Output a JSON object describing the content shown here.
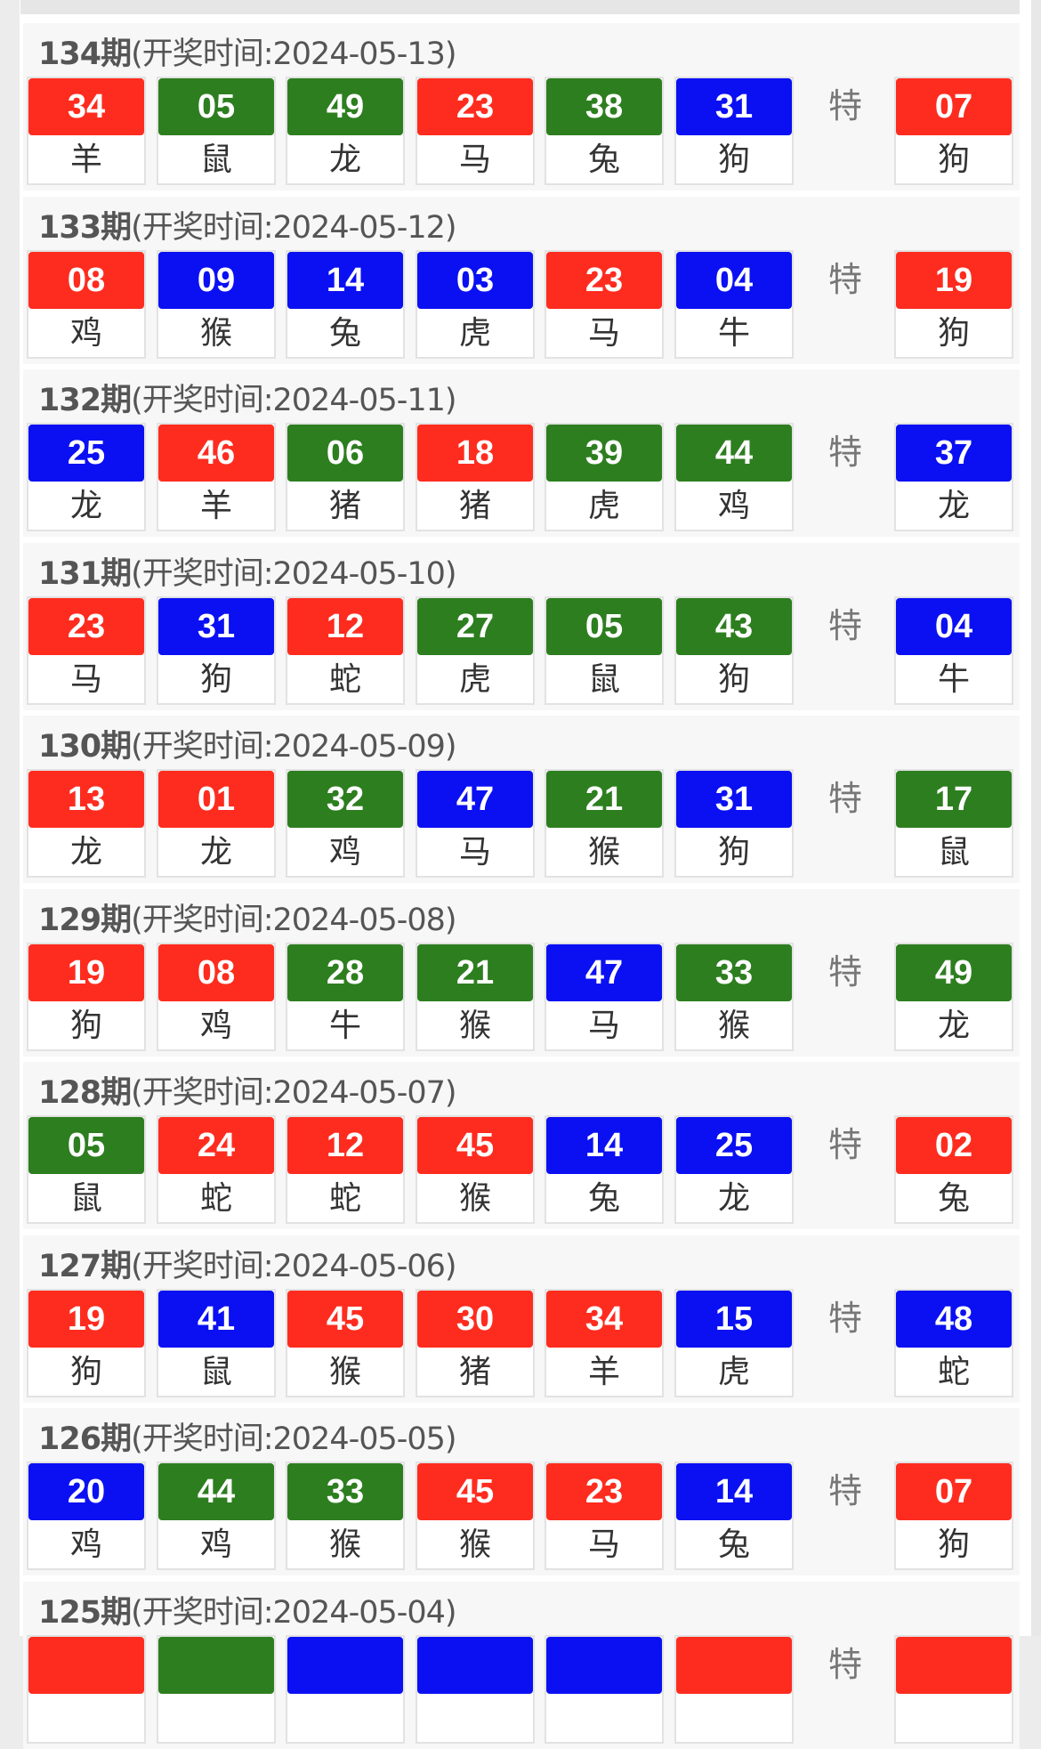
{
  "colors": {
    "red": "#fe2c1f",
    "green": "#2d7e1f",
    "blue": "#0a10f2"
  },
  "special_label": "特",
  "period_suffix": "期",
  "records": [
    {
      "period": "134",
      "date_text": "(开奖时间:2024-05-13)",
      "balls": [
        {
          "n": "34",
          "z": "羊",
          "c": "red"
        },
        {
          "n": "05",
          "z": "鼠",
          "c": "green"
        },
        {
          "n": "49",
          "z": "龙",
          "c": "green"
        },
        {
          "n": "23",
          "z": "马",
          "c": "red"
        },
        {
          "n": "38",
          "z": "兔",
          "c": "green"
        },
        {
          "n": "31",
          "z": "狗",
          "c": "blue"
        }
      ],
      "special": {
        "n": "07",
        "z": "狗",
        "c": "red"
      }
    },
    {
      "period": "133",
      "date_text": "(开奖时间:2024-05-12)",
      "balls": [
        {
          "n": "08",
          "z": "鸡",
          "c": "red"
        },
        {
          "n": "09",
          "z": "猴",
          "c": "blue"
        },
        {
          "n": "14",
          "z": "兔",
          "c": "blue"
        },
        {
          "n": "03",
          "z": "虎",
          "c": "blue"
        },
        {
          "n": "23",
          "z": "马",
          "c": "red"
        },
        {
          "n": "04",
          "z": "牛",
          "c": "blue"
        }
      ],
      "special": {
        "n": "19",
        "z": "狗",
        "c": "red"
      }
    },
    {
      "period": "132",
      "date_text": "(开奖时间:2024-05-11)",
      "balls": [
        {
          "n": "25",
          "z": "龙",
          "c": "blue"
        },
        {
          "n": "46",
          "z": "羊",
          "c": "red"
        },
        {
          "n": "06",
          "z": "猪",
          "c": "green"
        },
        {
          "n": "18",
          "z": "猪",
          "c": "red"
        },
        {
          "n": "39",
          "z": "虎",
          "c": "green"
        },
        {
          "n": "44",
          "z": "鸡",
          "c": "green"
        }
      ],
      "special": {
        "n": "37",
        "z": "龙",
        "c": "blue"
      }
    },
    {
      "period": "131",
      "date_text": "(开奖时间:2024-05-10)",
      "balls": [
        {
          "n": "23",
          "z": "马",
          "c": "red"
        },
        {
          "n": "31",
          "z": "狗",
          "c": "blue"
        },
        {
          "n": "12",
          "z": "蛇",
          "c": "red"
        },
        {
          "n": "27",
          "z": "虎",
          "c": "green"
        },
        {
          "n": "05",
          "z": "鼠",
          "c": "green"
        },
        {
          "n": "43",
          "z": "狗",
          "c": "green"
        }
      ],
      "special": {
        "n": "04",
        "z": "牛",
        "c": "blue"
      }
    },
    {
      "period": "130",
      "date_text": "(开奖时间:2024-05-09)",
      "balls": [
        {
          "n": "13",
          "z": "龙",
          "c": "red"
        },
        {
          "n": "01",
          "z": "龙",
          "c": "red"
        },
        {
          "n": "32",
          "z": "鸡",
          "c": "green"
        },
        {
          "n": "47",
          "z": "马",
          "c": "blue"
        },
        {
          "n": "21",
          "z": "猴",
          "c": "green"
        },
        {
          "n": "31",
          "z": "狗",
          "c": "blue"
        }
      ],
      "special": {
        "n": "17",
        "z": "鼠",
        "c": "green"
      }
    },
    {
      "period": "129",
      "date_text": "(开奖时间:2024-05-08)",
      "balls": [
        {
          "n": "19",
          "z": "狗",
          "c": "red"
        },
        {
          "n": "08",
          "z": "鸡",
          "c": "red"
        },
        {
          "n": "28",
          "z": "牛",
          "c": "green"
        },
        {
          "n": "21",
          "z": "猴",
          "c": "green"
        },
        {
          "n": "47",
          "z": "马",
          "c": "blue"
        },
        {
          "n": "33",
          "z": "猴",
          "c": "green"
        }
      ],
      "special": {
        "n": "49",
        "z": "龙",
        "c": "green"
      }
    },
    {
      "period": "128",
      "date_text": "(开奖时间:2024-05-07)",
      "balls": [
        {
          "n": "05",
          "z": "鼠",
          "c": "green"
        },
        {
          "n": "24",
          "z": "蛇",
          "c": "red"
        },
        {
          "n": "12",
          "z": "蛇",
          "c": "red"
        },
        {
          "n": "45",
          "z": "猴",
          "c": "red"
        },
        {
          "n": "14",
          "z": "兔",
          "c": "blue"
        },
        {
          "n": "25",
          "z": "龙",
          "c": "blue"
        }
      ],
      "special": {
        "n": "02",
        "z": "兔",
        "c": "red"
      }
    },
    {
      "period": "127",
      "date_text": "(开奖时间:2024-05-06)",
      "balls": [
        {
          "n": "19",
          "z": "狗",
          "c": "red"
        },
        {
          "n": "41",
          "z": "鼠",
          "c": "blue"
        },
        {
          "n": "45",
          "z": "猴",
          "c": "red"
        },
        {
          "n": "30",
          "z": "猪",
          "c": "red"
        },
        {
          "n": "34",
          "z": "羊",
          "c": "red"
        },
        {
          "n": "15",
          "z": "虎",
          "c": "blue"
        }
      ],
      "special": {
        "n": "48",
        "z": "蛇",
        "c": "blue"
      }
    },
    {
      "period": "126",
      "date_text": "(开奖时间:2024-05-05)",
      "balls": [
        {
          "n": "20",
          "z": "鸡",
          "c": "blue"
        },
        {
          "n": "44",
          "z": "鸡",
          "c": "green"
        },
        {
          "n": "33",
          "z": "猴",
          "c": "green"
        },
        {
          "n": "45",
          "z": "猴",
          "c": "red"
        },
        {
          "n": "23",
          "z": "马",
          "c": "red"
        },
        {
          "n": "14",
          "z": "兔",
          "c": "blue"
        }
      ],
      "special": {
        "n": "07",
        "z": "狗",
        "c": "red"
      }
    },
    {
      "period": "125",
      "date_text": "(开奖时间:2024-05-04)",
      "balls": [
        {
          "n": "",
          "z": "",
          "c": "red"
        },
        {
          "n": "",
          "z": "",
          "c": "green"
        },
        {
          "n": "",
          "z": "",
          "c": "blue"
        },
        {
          "n": "",
          "z": "",
          "c": "blue"
        },
        {
          "n": "",
          "z": "",
          "c": "blue"
        },
        {
          "n": "",
          "z": "",
          "c": "red"
        }
      ],
      "special": {
        "n": "",
        "z": "",
        "c": "red"
      }
    }
  ]
}
